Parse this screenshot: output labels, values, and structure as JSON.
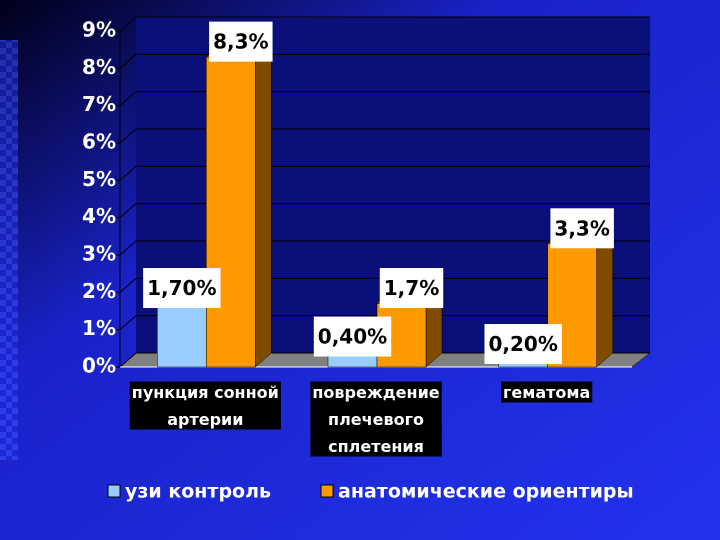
{
  "chart_data": {
    "type": "bar",
    "categories": [
      "пункция сонной артерии",
      "повреждение плечевого сплетения",
      "гематома"
    ],
    "series": [
      {
        "name": "узи контроль",
        "color": "#99ccff",
        "values": [
          1.7,
          0.4,
          0.2
        ],
        "value_labels": [
          "1,70%",
          "0,40%",
          "0,20%"
        ]
      },
      {
        "name": "анатомические ориентиры",
        "color": "#ff9900",
        "values": [
          8.3,
          1.7,
          3.3
        ],
        "value_labels": [
          "8,3%",
          "1,7%",
          "3,3%"
        ]
      }
    ],
    "ylim": [
      0,
      9
    ],
    "yticks": [
      {
        "value": 0,
        "label": "0%"
      },
      {
        "value": 1,
        "label": "1%"
      },
      {
        "value": 2,
        "label": "2%"
      },
      {
        "value": 3,
        "label": "3%"
      },
      {
        "value": 4,
        "label": "4%"
      },
      {
        "value": 5,
        "label": "5%"
      },
      {
        "value": 6,
        "label": "6%"
      },
      {
        "value": 7,
        "label": "7%"
      },
      {
        "value": 8,
        "label": "8%"
      },
      {
        "value": 9,
        "label": "9%"
      }
    ],
    "grid": true
  }
}
